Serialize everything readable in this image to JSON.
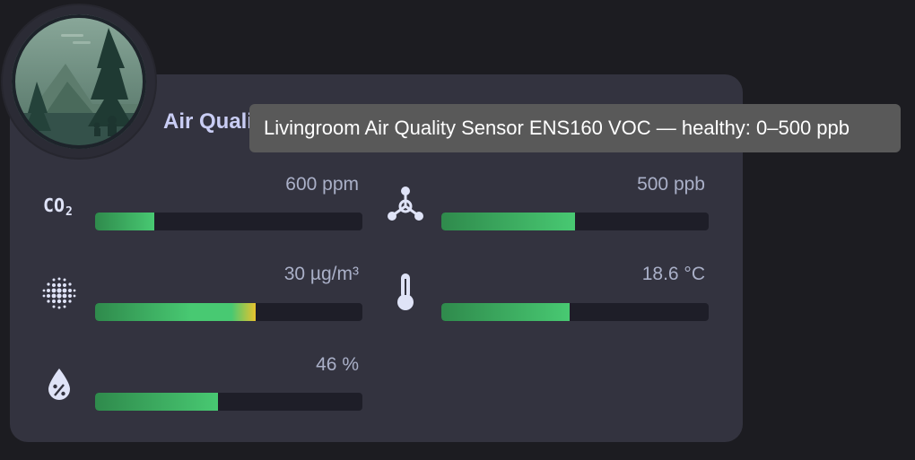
{
  "card": {
    "title": "Air Quality"
  },
  "tooltip": {
    "text": "Livingroom Air Quality Sensor ENS160 VOC — healthy: 0–500 ppb"
  },
  "sensors": [
    {
      "id": "co2",
      "icon": "co2-icon",
      "value": "600 ppm",
      "level_percent": 22,
      "bar_color": "#48c972"
    },
    {
      "id": "voc",
      "icon": "molecule-icon",
      "value": "500 ppb",
      "level_percent": 50,
      "bar_color": "#48c972"
    },
    {
      "id": "pm",
      "icon": "particulate-dots-icon",
      "value": "30 µg/m³",
      "level_percent": 60,
      "bar_color": "#48c972",
      "bar_end_color": "#e7c32e"
    },
    {
      "id": "temperature",
      "icon": "thermometer-icon",
      "value": "18.6 °C",
      "level_percent": 48,
      "bar_color": "#48c972"
    },
    {
      "id": "humidity",
      "icon": "water-percent-icon",
      "value": "46 %",
      "level_percent": 46,
      "bar_color": "#48c972"
    }
  ]
}
